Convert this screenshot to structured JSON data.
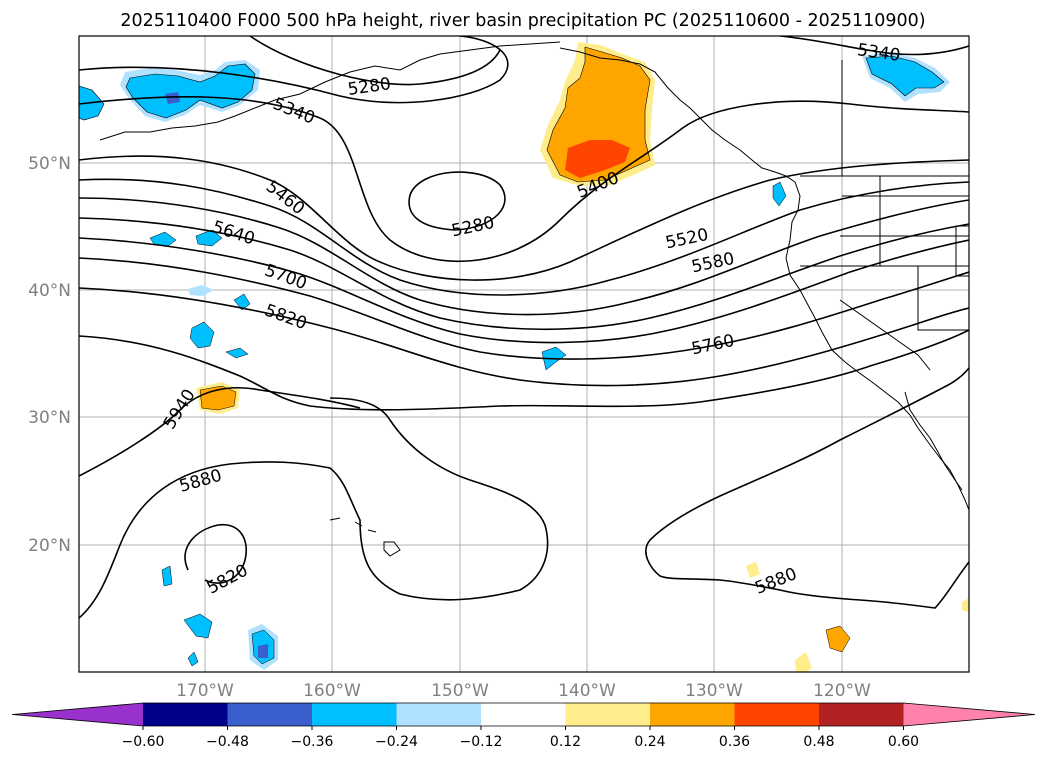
{
  "title": "2025110400 F000 500 hPa height, river basin precipitation PC (2025110600 - 2025110900)",
  "map": {
    "lat_labels": [
      "50°N",
      "40°N",
      "30°N",
      "20°N"
    ],
    "lon_labels": [
      "170°W",
      "160°W",
      "150°W",
      "140°W",
      "130°W",
      "120°W"
    ],
    "contour_labels": [
      "5340",
      "5280",
      "5340",
      "5460",
      "5280",
      "5400",
      "5520",
      "5580",
      "5640",
      "5700",
      "5820",
      "5760",
      "5940",
      "5880",
      "5820",
      "5880"
    ]
  },
  "colorbar": {
    "colors": [
      "#9932cc",
      "#00008b",
      "#3a5fcd",
      "#00bfff",
      "#b0e2ff",
      "#ffffff",
      "#ffec8b",
      "#ffa500",
      "#ff4500",
      "#b22222",
      "#ff82ab"
    ],
    "ticks": [
      "−0.60",
      "−0.48",
      "−0.36",
      "−0.24",
      "−0.12",
      "0.12",
      "0.24",
      "0.36",
      "0.48",
      "0.60"
    ]
  }
}
